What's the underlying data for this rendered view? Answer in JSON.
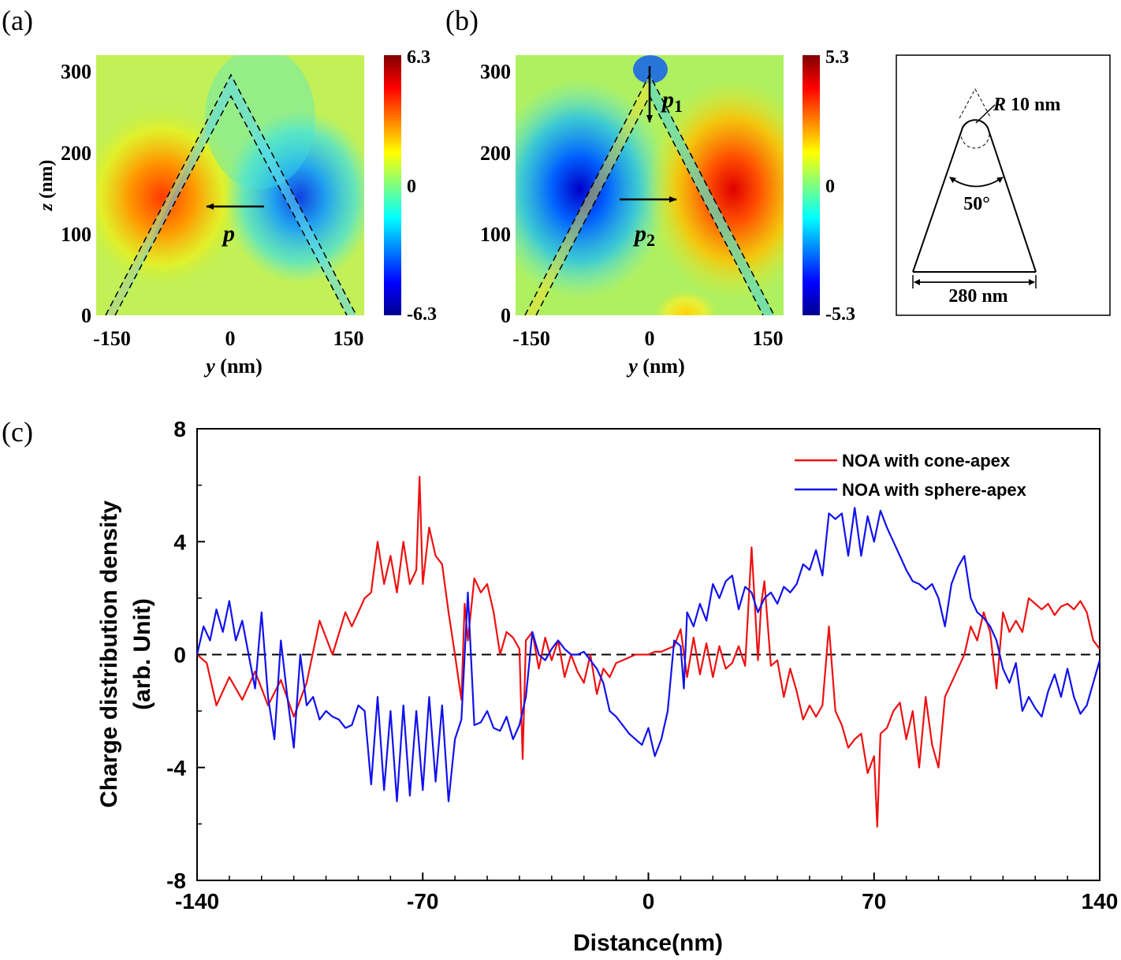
{
  "panel_labels": {
    "a": "(a)",
    "b": "(b)",
    "c": "(c)"
  },
  "chart_data": [
    {
      "id": "a",
      "type": "heatmap",
      "title": "",
      "xlabel_var": "y",
      "xlabel_unit": "(nm)",
      "ylabel_var": "z",
      "ylabel_unit": "(nm)",
      "xlim": [
        -170,
        170
      ],
      "ylim": [
        0,
        320
      ],
      "x_ticks": [
        "-150",
        "0",
        "150"
      ],
      "y_ticks": [
        "0",
        "100",
        "200",
        "300"
      ],
      "colorbar": {
        "max": 6.3,
        "min": -6.3,
        "ticks": [
          "6.3",
          "0",
          "-6.3"
        ]
      },
      "cone_outline": [
        [
          -150,
          0
        ],
        [
          0,
          295
        ],
        [
          150,
          0
        ]
      ],
      "annotation": {
        "symbol": "p",
        "subscript": "",
        "direction": "left"
      }
    },
    {
      "id": "b",
      "type": "heatmap",
      "title": "",
      "xlabel_var": "y",
      "xlabel_unit": "(nm)",
      "ylabel_var": "z",
      "ylabel_unit": "(nm)",
      "xlim": [
        -170,
        170
      ],
      "ylim": [
        0,
        320
      ],
      "x_ticks": [
        "-150",
        "0",
        "150"
      ],
      "y_ticks": [
        "0",
        "100",
        "200",
        "300"
      ],
      "colorbar": {
        "max": 5.3,
        "min": -5.3,
        "ticks": [
          "5.3",
          "0",
          "-5.3"
        ]
      },
      "cone_outline": [
        [
          -150,
          0
        ],
        [
          0,
          295
        ],
        [
          150,
          0
        ]
      ],
      "annotations": [
        {
          "symbol": "p",
          "subscript": "1",
          "direction": "down"
        },
        {
          "symbol": "p",
          "subscript": "2",
          "direction": "right"
        }
      ]
    },
    {
      "id": "schematic",
      "type": "diagram",
      "radius_label": "R",
      "radius_value": "10 nm",
      "angle_label": "50°",
      "base_label": "280 nm"
    },
    {
      "id": "c",
      "type": "line",
      "title": "",
      "xlabel": "Distance(nm)",
      "ylabel_line1": "Charge distribution density",
      "ylabel_line2": "(arb. Unit)",
      "xlim": [
        -140,
        140
      ],
      "ylim": [
        -8,
        8
      ],
      "x_ticks": [
        -140,
        -70,
        0,
        70,
        140
      ],
      "y_ticks": [
        -8,
        -4,
        0,
        4,
        8
      ],
      "reference_line": 0,
      "legend_position": "top-right",
      "series": [
        {
          "name": "NOA with cone-apex",
          "color": "#ee1111",
          "x": [
            -140,
            -137,
            -134,
            -130,
            -126,
            -122,
            -118,
            -114,
            -110,
            -106,
            -102,
            -98,
            -94,
            -92,
            -90,
            -88,
            -86,
            -84,
            -82,
            -80,
            -78,
            -76,
            -74,
            -72,
            -71,
            -70,
            -68,
            -66,
            -64,
            -62,
            -60,
            -58,
            -57,
            -56,
            -54,
            -52,
            -50,
            -48,
            -46,
            -44,
            -42,
            -40,
            -39,
            -38,
            -36,
            -34,
            -32,
            -30,
            -28,
            -26,
            -24,
            -22,
            -20,
            -18,
            -16,
            -14,
            -12,
            -10,
            -8,
            -6,
            -4,
            -2,
            0,
            2,
            4,
            6,
            8,
            10,
            12,
            14,
            16,
            18,
            20,
            22,
            24,
            26,
            28,
            30,
            32,
            34,
            35,
            36,
            38,
            40,
            42,
            44,
            46,
            48,
            50,
            52,
            54,
            56,
            58,
            60,
            62,
            64,
            66,
            68,
            70,
            71,
            72,
            74,
            76,
            78,
            80,
            82,
            84,
            86,
            88,
            90,
            92,
            94,
            96,
            98,
            100,
            102,
            104,
            106,
            108,
            110,
            112,
            114,
            116,
            118,
            120,
            122,
            124,
            126,
            128,
            130,
            132,
            134,
            136,
            138,
            140
          ],
          "values": [
            0,
            -0.3,
            -1.8,
            -0.8,
            -1.6,
            -0.6,
            -1.8,
            -0.9,
            -2.2,
            -1.0,
            1.2,
            0.0,
            1.5,
            1.0,
            1.5,
            2.0,
            2.2,
            4.0,
            2.5,
            3.5,
            2.2,
            4.0,
            2.5,
            3.0,
            6.3,
            2.5,
            4.5,
            3.5,
            3.2,
            1.5,
            0.0,
            -1.6,
            1.8,
            0.5,
            2.7,
            2.2,
            2.5,
            1.5,
            0.0,
            0.8,
            0.6,
            0.2,
            -3.7,
            0.5,
            0.8,
            -0.5,
            0.6,
            -0.2,
            0.5,
            -0.8,
            0.0,
            -0.6,
            -1.0,
            0.0,
            -1.4,
            -0.5,
            -0.8,
            -0.3,
            -0.2,
            -0.1,
            0.0,
            0.0,
            0.0,
            0.1,
            0.1,
            0.2,
            0.3,
            0.9,
            -0.8,
            0.6,
            -0.7,
            0.4,
            -0.8,
            0.3,
            -0.5,
            -0.3,
            0.3,
            -0.4,
            3.8,
            -0.2,
            1.8,
            2.6,
            -0.4,
            -0.2,
            -1.5,
            -0.5,
            -1.3,
            -2.3,
            -1.8,
            -2.2,
            -1.8,
            1.0,
            -2.0,
            -2.5,
            -3.3,
            -3.0,
            -2.8,
            -4.2,
            -3.6,
            -6.1,
            -2.8,
            -2.6,
            -2.0,
            -1.7,
            -3.0,
            -2.0,
            -4.0,
            -1.5,
            -3.2,
            -4.0,
            -1.5,
            -1.0,
            -0.5,
            0.0,
            1.0,
            0.5,
            1.5,
            0.8,
            -1.2,
            1.5,
            0.8,
            1.2,
            0.8,
            2.0,
            1.8,
            1.6,
            1.8,
            1.4,
            1.7,
            1.8,
            1.6,
            1.9,
            1.5,
            0.5,
            0.2
          ]
        },
        {
          "name": "NOA with sphere-apex",
          "color": "#1111ee",
          "x": [
            -140,
            -138,
            -136,
            -134,
            -132,
            -130,
            -128,
            -126,
            -124,
            -122,
            -120,
            -118,
            -116,
            -114,
            -112,
            -110,
            -108,
            -106,
            -104,
            -102,
            -100,
            -98,
            -96,
            -94,
            -92,
            -90,
            -88,
            -86,
            -84,
            -82,
            -80,
            -78,
            -76,
            -74,
            -72,
            -70,
            -68,
            -66,
            -64,
            -62,
            -60,
            -58,
            -56,
            -54,
            -52,
            -50,
            -48,
            -46,
            -44,
            -42,
            -40,
            -38,
            -36,
            -34,
            -32,
            -30,
            -28,
            -26,
            -24,
            -22,
            -20,
            -18,
            -16,
            -14,
            -12,
            -10,
            -8,
            -6,
            -4,
            -2,
            0,
            2,
            4,
            6,
            8,
            10,
            11,
            12,
            14,
            16,
            18,
            20,
            22,
            24,
            26,
            28,
            30,
            32,
            34,
            36,
            38,
            40,
            42,
            44,
            46,
            48,
            50,
            52,
            54,
            56,
            58,
            60,
            62,
            64,
            66,
            68,
            70,
            72,
            74,
            76,
            78,
            80,
            82,
            84,
            86,
            88,
            90,
            92,
            94,
            96,
            98,
            100,
            102,
            104,
            106,
            108,
            110,
            112,
            114,
            116,
            118,
            120,
            122,
            124,
            126,
            128,
            130,
            132,
            134,
            136,
            138,
            140
          ],
          "values": [
            0,
            1.0,
            0.5,
            1.6,
            0.8,
            1.9,
            0.5,
            1.2,
            0,
            -1.2,
            1.5,
            -1.5,
            -3.0,
            0.5,
            -1.5,
            -3.3,
            0,
            -1.8,
            -1.5,
            -2.3,
            -2.0,
            -2.2,
            -2.3,
            -2.6,
            -2.5,
            -1.8,
            -2.0,
            -4.6,
            -1.5,
            -4.8,
            -2.0,
            -5.2,
            -1.8,
            -5.0,
            -2.0,
            -4.8,
            -1.5,
            -4.5,
            -1.8,
            -5.2,
            -3.0,
            -2.3,
            2.2,
            -2.5,
            -2.4,
            -2.0,
            -2.6,
            -2.7,
            -2.2,
            -3.0,
            -2.5,
            -1.5,
            0.8,
            0.0,
            -0.2,
            0.2,
            0.5,
            0.2,
            0.0,
            0.0,
            0.1,
            -0.2,
            -0.5,
            -1.0,
            -2.0,
            -2.2,
            -2.5,
            -2.8,
            -3.0,
            -3.2,
            -2.6,
            -3.6,
            -3.0,
            -2.0,
            0.5,
            0.3,
            -1.2,
            1.5,
            1.0,
            1.8,
            1.2,
            2.5,
            2.0,
            2.6,
            2.8,
            1.6,
            2.4,
            2.2,
            1.5,
            2.0,
            2.2,
            1.8,
            2.4,
            2.2,
            2.5,
            3.2,
            3.0,
            3.7,
            2.8,
            5.0,
            4.8,
            5.0,
            3.5,
            5.2,
            3.5,
            4.9,
            4.0,
            5.1,
            4.5,
            4.0,
            3.5,
            3.0,
            2.6,
            2.5,
            2.3,
            2.5,
            2.0,
            1.0,
            2.5,
            3.1,
            3.5,
            2.0,
            1.5,
            1.3,
            1.0,
            0.5,
            -0.5,
            -1.0,
            -0.3,
            -2.0,
            -1.5,
            -1.9,
            -2.2,
            -1.3,
            -0.7,
            -1.5,
            -0.5,
            -1.5,
            -2.1,
            -1.8,
            -1.0,
            -0.2
          ]
        }
      ]
    }
  ]
}
